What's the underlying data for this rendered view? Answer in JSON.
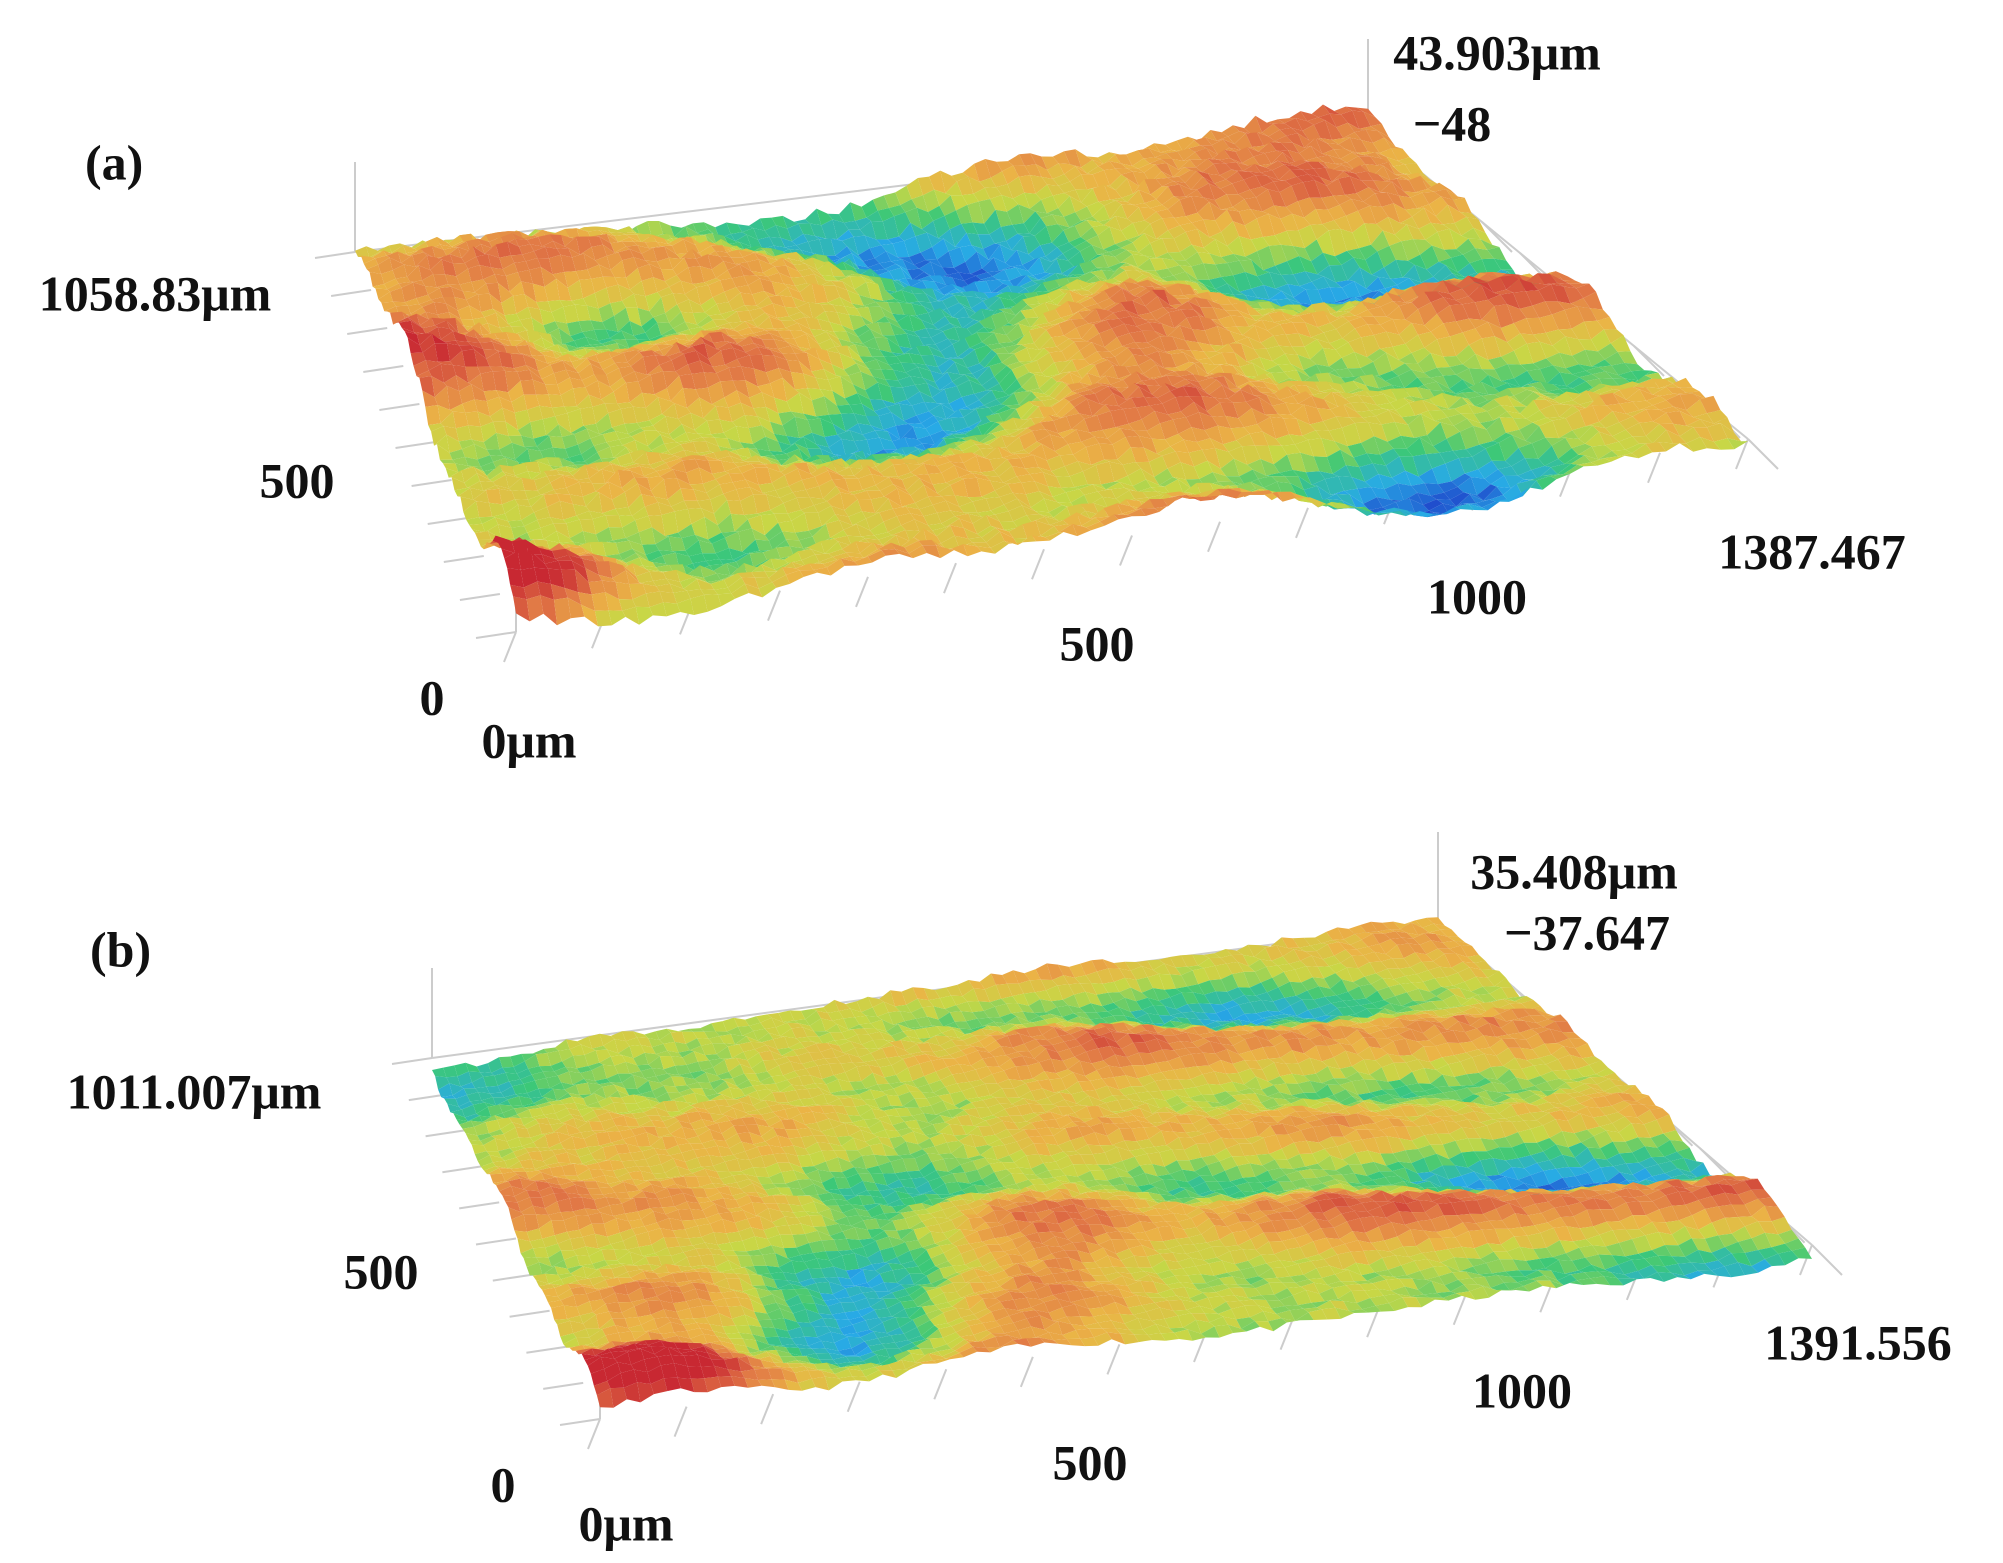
{
  "panels": [
    {
      "label": "(a)",
      "z_max": "43.903μm",
      "z_min": "−48",
      "y_max": "1058.83μm",
      "y_mid": "500",
      "y_origin": "0",
      "x_origin": "0μm",
      "x_mid": "500",
      "x_high": "1000",
      "x_max": "1387.467"
    },
    {
      "label": "(b)",
      "z_max": "35.408μm",
      "z_min": "−37.647",
      "y_max": "1011.007μm",
      "y_mid": "500",
      "y_origin": "0",
      "x_origin": "0μm",
      "x_mid": "500",
      "x_high": "1000",
      "x_max": "1391.556"
    }
  ]
}
